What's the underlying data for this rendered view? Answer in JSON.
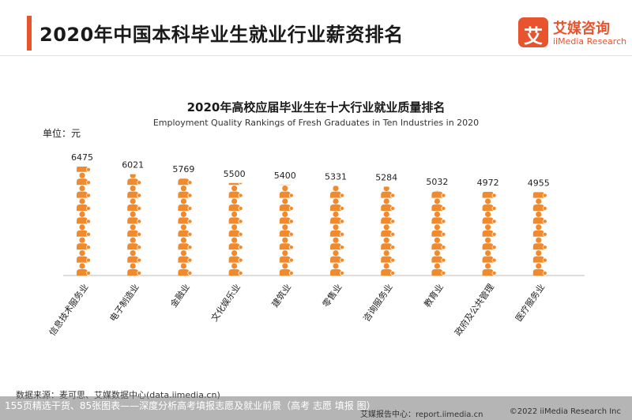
{
  "header": {
    "title": "2020年中国本科毕业生就业行业薪资排名",
    "logo_cn": "艾媒咨询",
    "logo_en": "iiMedia Research",
    "logo_mark": "艾"
  },
  "chart_data": {
    "type": "bar",
    "title": "2020年高校应届毕业生在十大行业就业质量排名",
    "subtitle": "Employment Quality Rankings of Fresh Graduates in Ten Industries in 2020",
    "unit": "单位：元",
    "categories": [
      "信息技术服务业",
      "电子制造业",
      "金融业",
      "文化娱乐业",
      "建筑业",
      "零售业",
      "咨询服务业",
      "教育业",
      "政府及公共管理",
      "医疗服务业"
    ],
    "values": [
      6475,
      6021,
      5769,
      5500,
      5400,
      5331,
      5284,
      5032,
      4972,
      4955
    ],
    "value_labels": [
      "6475",
      "6021",
      "5769",
      "5500",
      "5400",
      "5331",
      "5284",
      "5032",
      "4972",
      "4955"
    ],
    "ylim": [
      0,
      6475
    ],
    "bar_style": "pictograph",
    "icon": "person-icon",
    "color": "#f08a2c"
  },
  "footer": {
    "source": "数据来源：麦可思、艾媒数据中心(data.iimedia.cn)",
    "caption": "155页精选干货、85张图表——深度分析高考填报志愿及就业前景（高考 志愿 填报 图）",
    "brand": "艾媒报告中心：report.iimedia.cn",
    "copyright": "©2022 iiMedia Research Inc"
  }
}
